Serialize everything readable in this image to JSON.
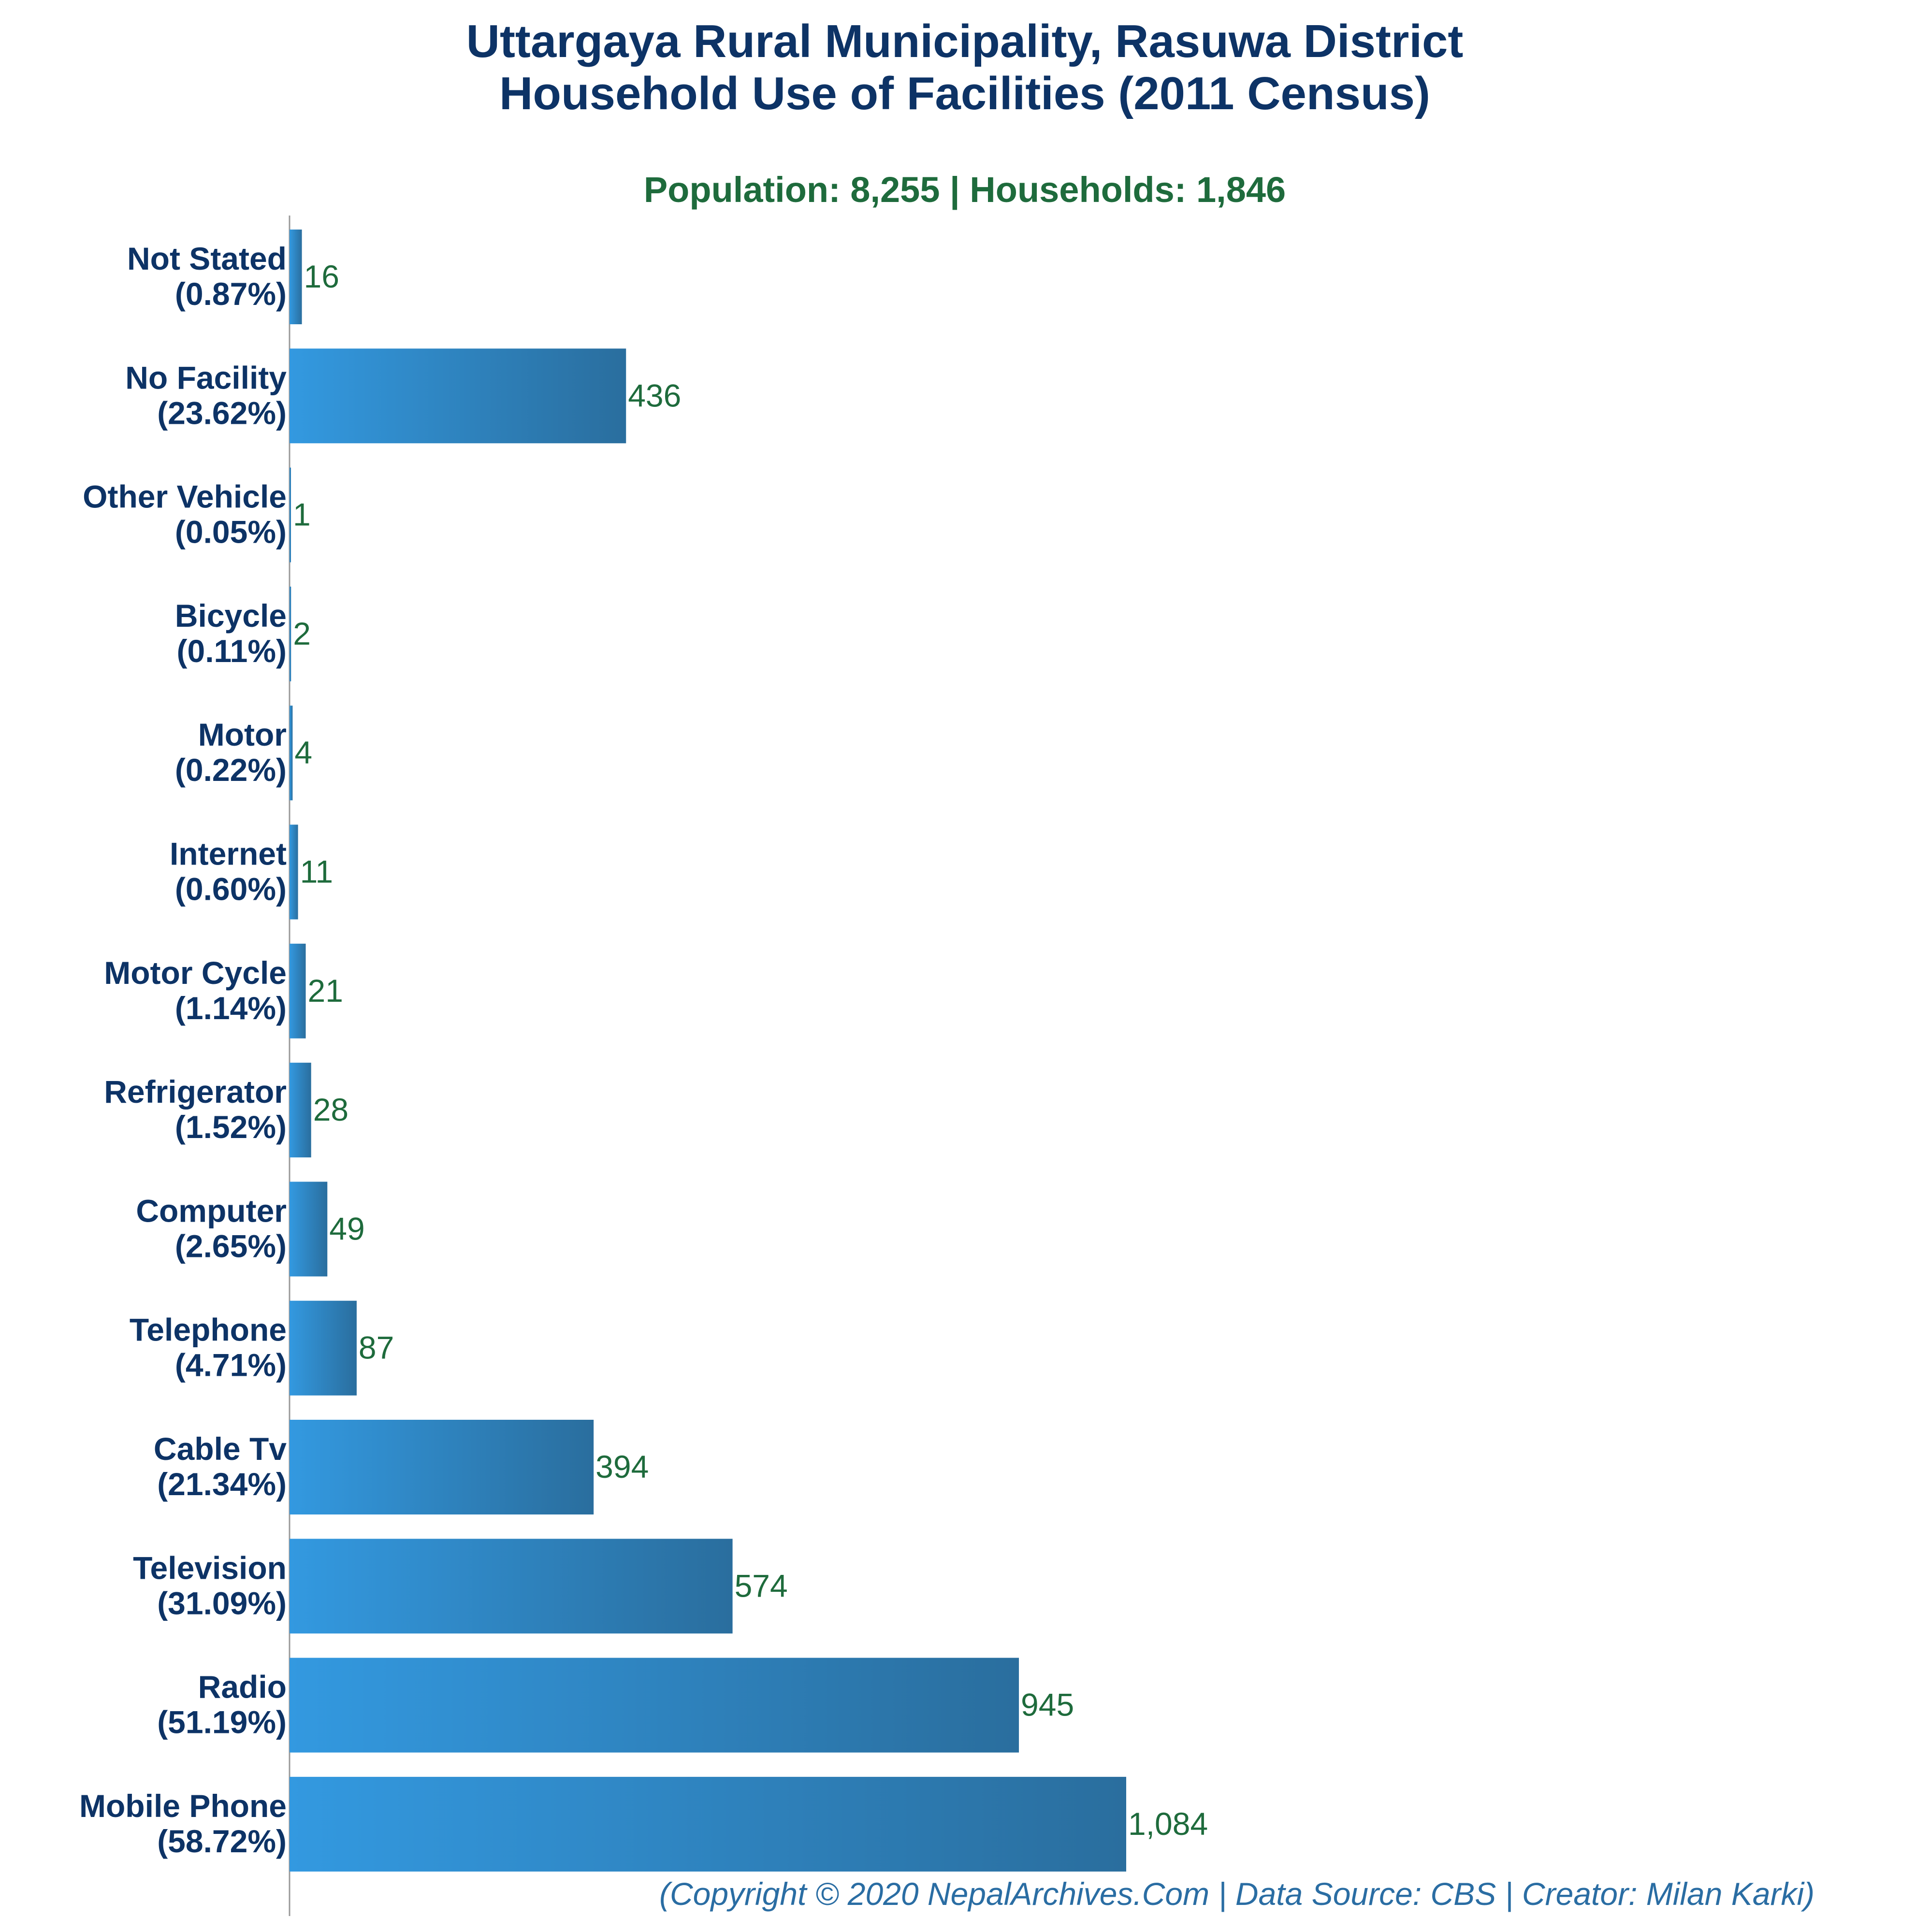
{
  "title_line1": "Uttargaya Rural Municipality, Rasuwa District",
  "title_line2": "Household Use of Facilities (2011 Census)",
  "subtitle": "Population: 8,255 | Households: 1,846",
  "footer": "(Copyright © 2020 NepalArchives.Com | Data Source: CBS | Creator: Milan Karki)",
  "colors": {
    "title": "#0d3366",
    "subtitle": "#1e6b3c",
    "value_label": "#1e6b3c",
    "category_label": "#0d3366",
    "footer": "#2a6da3",
    "bar_light": "#3399e0",
    "bar_dark": "#2a6e9e",
    "axis": "#999999"
  },
  "chart_data": {
    "type": "bar",
    "orientation": "horizontal",
    "title": "Uttargaya Rural Municipality, Rasuwa District Household Use of Facilities (2011 Census)",
    "subtitle": "Population: 8,255 | Households: 1,846",
    "xlabel": "",
    "ylabel": "",
    "xlim": [
      0,
      1084
    ],
    "grid": false,
    "legend": "none",
    "categories": [
      "Not Stated",
      "No Facility",
      "Other Vehicle",
      "Bicycle",
      "Motor",
      "Internet",
      "Motor Cycle",
      "Refrigerator",
      "Computer",
      "Telephone",
      "Cable Tv",
      "Television",
      "Radio",
      "Mobile Phone"
    ],
    "percent_labels": [
      "(0.87%)",
      "(23.62%)",
      "(0.05%)",
      "(0.11%)",
      "(0.22%)",
      "(0.60%)",
      "(1.14%)",
      "(1.52%)",
      "(2.65%)",
      "(4.71%)",
      "(21.34%)",
      "(31.09%)",
      "(51.19%)",
      "(58.72%)"
    ],
    "values": [
      16,
      436,
      1,
      2,
      4,
      11,
      21,
      28,
      49,
      87,
      394,
      574,
      945,
      1084
    ],
    "value_labels": [
      "16",
      "436",
      "1",
      "2",
      "4",
      "11",
      "21",
      "28",
      "49",
      "87",
      "394",
      "574",
      "945",
      "1,084"
    ]
  }
}
